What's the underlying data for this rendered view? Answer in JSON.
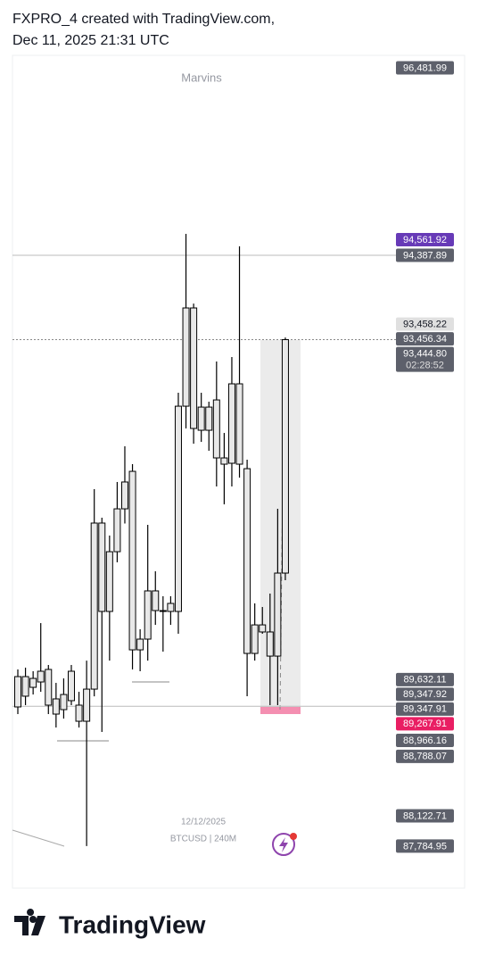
{
  "header": {
    "line1": "FXPRO_4 created with TradingView.com,",
    "line2": "Dec 11, 2025 21:31 UTC"
  },
  "chart_data": {
    "type": "candlestick",
    "watermark": "Marvins",
    "date_label": "12/12/2025",
    "symbol_label": "BTCUSD | 240M",
    "ylim": [
      87315,
      96622
    ],
    "color": "#e8e8e8",
    "open": [
      89679,
      89460,
      89659,
      89619,
      89759,
      89430,
      89310,
      89410,
      89360,
      89180,
      89539,
      91395,
      90407,
      91075,
      91554,
      91973,
      89978,
      90098,
      90637,
      90417,
      90407,
      90407,
      92701,
      93799,
      92432,
      92691,
      92123,
      92123,
      92063,
      92951,
      92003,
      89938,
      90257,
      90178,
      89908,
      90836
    ],
    "high": [
      89759,
      89779,
      89739,
      90277,
      89809,
      89609,
      89659,
      89809,
      89509,
      89858,
      91774,
      91455,
      91255,
      91854,
      92253,
      92053,
      90208,
      91375,
      90856,
      90577,
      90577,
      92851,
      94627,
      93848,
      92851,
      92751,
      93200,
      92402,
      93250,
      94487,
      92103,
      90497,
      90457,
      90607,
      91554,
      93469
    ],
    "low": [
      89260,
      89360,
      89479,
      89509,
      89260,
      89110,
      89210,
      89360,
      89110,
      87785,
      89459,
      89061,
      89858,
      90956,
      91390,
      89759,
      89739,
      89858,
      90257,
      89958,
      90257,
      90158,
      92452,
      92282,
      92302,
      92203,
      91804,
      91604,
      91804,
      91903,
      89460,
      89858,
      90158,
      89360,
      89360,
      90756
    ],
    "close": [
      89340,
      89679,
      89559,
      89739,
      89360,
      89260,
      89479,
      89739,
      89180,
      89539,
      91395,
      90407,
      91075,
      91554,
      91854,
      89978,
      90098,
      90637,
      90417,
      90407,
      90497,
      92701,
      93799,
      92452,
      92691,
      92432,
      92771,
      92053,
      92951,
      92053,
      89938,
      90257,
      90178,
      89908,
      90836,
      93444.8
    ],
    "price_labels": [
      {
        "value": 96481.99,
        "label": "96,481.99",
        "color": "#5d606b"
      },
      {
        "value": 94561.92,
        "label": "94,561.92",
        "color": "#673ab7"
      },
      {
        "value": 94387.89,
        "label": "94,387.89",
        "color": "#5d606b",
        "line": "solid"
      },
      {
        "value": 93458.22,
        "label": "93,458.22",
        "color": "#e0e0e0"
      },
      {
        "value": 93456.34,
        "label": "93,456.34",
        "color": "#5d606b"
      },
      {
        "value": 93444.8,
        "label": "93,444.80",
        "color": "#5d606b",
        "line": "dotted",
        "countdown": "02:28:52"
      },
      {
        "value": 89632.11,
        "label": "89,632.11",
        "color": "#5d606b"
      },
      {
        "value": 89347.92,
        "label": "89,347.92",
        "color": "#5d606b",
        "line": "solid"
      },
      {
        "value": 89347.91,
        "label": "89,347.91",
        "color": "#5d606b"
      },
      {
        "value": 89267.91,
        "label": "89,267.91",
        "color": "#e91e63"
      },
      {
        "value": 88966.16,
        "label": "88,966.16",
        "color": "#5d606b"
      },
      {
        "value": 88788.07,
        "label": "88,788.07",
        "color": "#5d606b"
      },
      {
        "value": 88122.71,
        "label": "88,122.71",
        "color": "#5d606b"
      },
      {
        "value": 87784.95,
        "label": "87,784.95",
        "color": "#5d606b"
      }
    ]
  },
  "footer": {
    "logo": "TradingView"
  }
}
